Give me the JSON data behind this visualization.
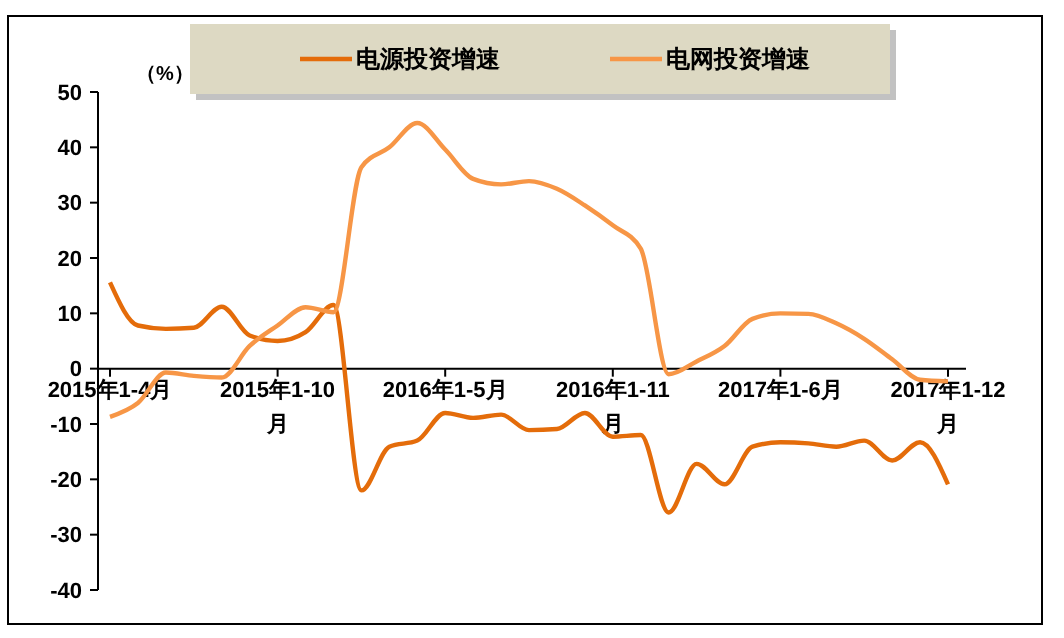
{
  "chart_data": {
    "type": "line",
    "ylabel": "（%）",
    "categories": [
      "2015年1-4月",
      null,
      null,
      null,
      null,
      null,
      "2015年1-10月",
      null,
      null,
      null,
      null,
      null,
      "2016年1-5月",
      null,
      null,
      null,
      null,
      null,
      "2016年1-11月",
      null,
      null,
      null,
      null,
      null,
      "2017年1-6月",
      null,
      null,
      null,
      null,
      null,
      "2017年1-12月"
    ],
    "series": [
      {
        "name": "电源投资增速",
        "color": "#e46c0a",
        "values": [
          15.6,
          7.8,
          7.2,
          7.4,
          11.2,
          6,
          5,
          6.6,
          11.5,
          -22,
          -14.1,
          -13,
          -8,
          -8.9,
          -8.3,
          -11.1,
          -10.9,
          -8,
          -12.3,
          -12,
          -26,
          -17.2,
          -20.9,
          -14.1,
          -13.3,
          -13.5,
          -14.1,
          -13,
          -16.6,
          -13.3,
          -20.9
        ]
      },
      {
        "name": "电网投资增速",
        "color": "#f79646",
        "values": [
          -8.7,
          -6.2,
          -0.7,
          -1.3,
          -1.6,
          4.1,
          7.8,
          11.1,
          10.2,
          36.4,
          40,
          44.4,
          39.6,
          34.3,
          33.3,
          33.9,
          32.5,
          29.5,
          25.9,
          21.7,
          -1,
          1.3,
          4.1,
          9,
          10,
          9.9,
          8.2,
          5.4,
          1.7,
          -2,
          -2.3
        ]
      }
    ],
    "ylim": [
      -40,
      50
    ],
    "yticks": [
      -40,
      -30,
      -20,
      -10,
      0,
      10,
      20,
      30,
      40,
      50
    ],
    "grid": false,
    "legend": "top",
    "marker": "none",
    "line_style": "solid"
  }
}
